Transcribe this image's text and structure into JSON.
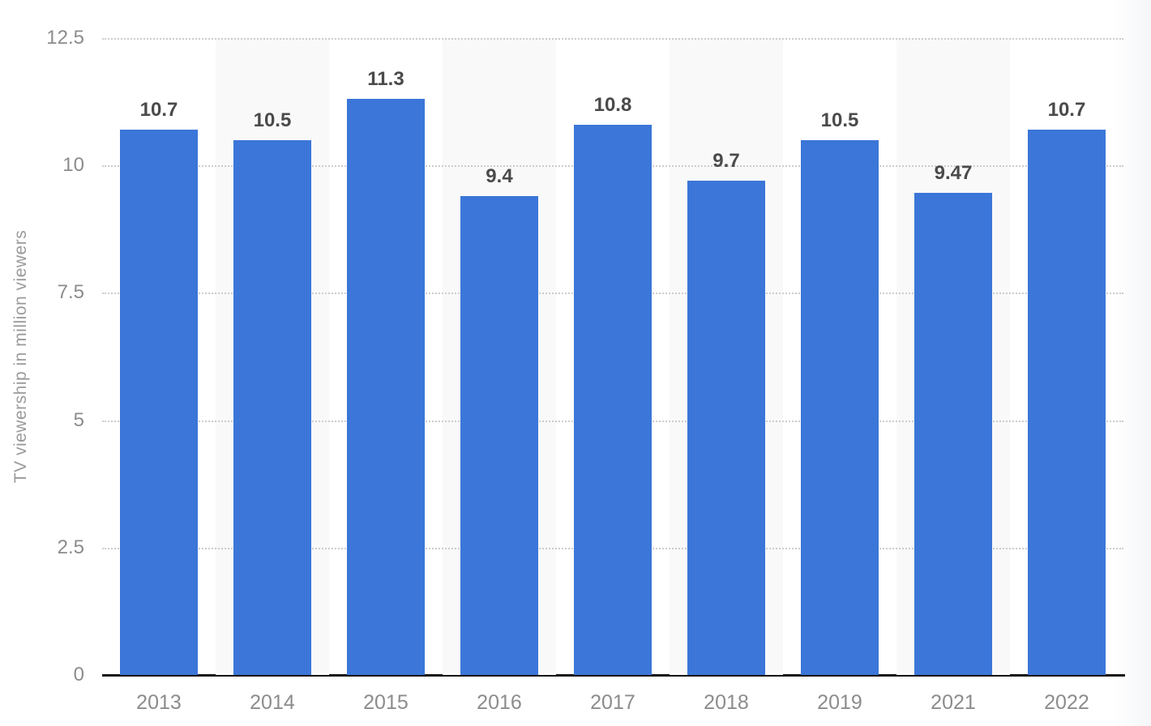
{
  "chart_data": {
    "type": "bar",
    "title": "",
    "xlabel": "",
    "ylabel": "TV viewership in million viewers",
    "categories": [
      "2013",
      "2014",
      "2015",
      "2016",
      "2017",
      "2018",
      "2019",
      "2021",
      "2022"
    ],
    "values": [
      10.7,
      10.5,
      11.3,
      9.4,
      10.8,
      9.7,
      10.5,
      9.47,
      10.7
    ],
    "value_labels": [
      "10.7",
      "10.5",
      "11.3",
      "9.4",
      "10.8",
      "9.7",
      "10.5",
      "9.47",
      "10.7"
    ],
    "ylim": [
      0,
      12.5
    ],
    "yticks": [
      12.5,
      10,
      7.5,
      5,
      2.5,
      0
    ],
    "ytick_labels": [
      "12.5",
      "10",
      "7.5",
      "5",
      "2.5",
      "0"
    ],
    "grid": "horizontal-dotted",
    "legend": "none",
    "stripe_pattern": "alternating-columns",
    "colors": {
      "bar": "#3b76d8",
      "stripe": "#f9f9f9",
      "gridline": "#cccccc",
      "tick_text": "#8c8c8c",
      "value_text": "#4a4a4a",
      "axis_line": "#141414"
    }
  }
}
